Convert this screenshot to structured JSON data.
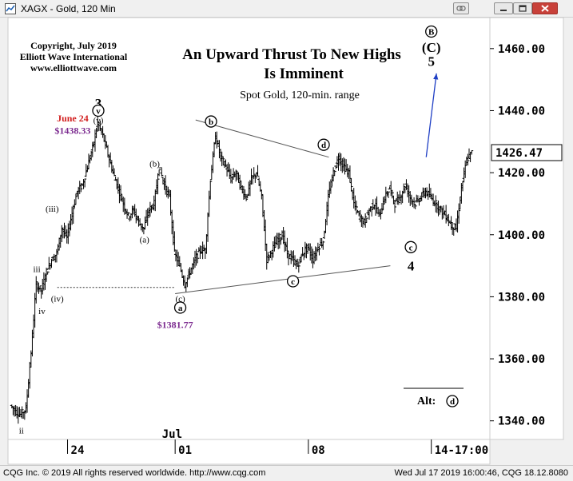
{
  "window": {
    "title": "XAGX - Gold, 120 Min"
  },
  "chart_data": {
    "type": "candlestick",
    "title": "An Upward Thrust To New Highs",
    "title_line2": "Is Imminent",
    "subtitle": "Spot Gold, 120-min. range",
    "copyright_lines": [
      "Copyright, July 2019",
      "Elliott Wave International",
      "www.elliottwave.com"
    ],
    "ylim": [
      1334,
      1470
    ],
    "y_ticks": [
      {
        "value": 1460,
        "label": "1460.00"
      },
      {
        "value": 1440,
        "label": "1440.00"
      },
      {
        "value": 1420,
        "label": "1420.00"
      },
      {
        "value": 1400,
        "label": "1400.00"
      },
      {
        "value": 1380,
        "label": "1380.00"
      },
      {
        "value": 1360,
        "label": "1360.00"
      },
      {
        "value": 1340,
        "label": "1340.00"
      }
    ],
    "last_price": {
      "value": 1426.47,
      "label": "1426.47"
    },
    "x_ticks": [
      {
        "bar": 11,
        "label": "24"
      },
      {
        "bar": 32,
        "label": "01"
      },
      {
        "bar": 58,
        "label": "08"
      },
      {
        "bar": 82,
        "label": "14-17:00"
      }
    ],
    "x_month_label": {
      "bar": 31,
      "label": "Jul"
    },
    "price_path": [
      [
        0,
        1345
      ],
      [
        1,
        1343
      ],
      [
        2,
        1342
      ],
      [
        3,
        1344
      ],
      [
        4,
        1362
      ],
      [
        5,
        1384
      ],
      [
        6,
        1382
      ],
      [
        7,
        1388
      ],
      [
        8,
        1392
      ],
      [
        9,
        1394
      ],
      [
        10,
        1402
      ],
      [
        11,
        1399
      ],
      [
        12,
        1407
      ],
      [
        13,
        1414
      ],
      [
        14,
        1416
      ],
      [
        15,
        1422
      ],
      [
        16,
        1428
      ],
      [
        17,
        1436
      ],
      [
        18,
        1432
      ],
      [
        19,
        1426
      ],
      [
        20,
        1420
      ],
      [
        21,
        1415
      ],
      [
        22,
        1410
      ],
      [
        23,
        1406
      ],
      [
        24,
        1408
      ],
      [
        25,
        1404
      ],
      [
        26,
        1402
      ],
      [
        27,
        1408
      ],
      [
        28,
        1410
      ],
      [
        29,
        1422
      ],
      [
        30,
        1416
      ],
      [
        31,
        1412
      ],
      [
        32,
        1394
      ],
      [
        33,
        1390
      ],
      [
        34,
        1384
      ],
      [
        35,
        1388
      ],
      [
        36,
        1392
      ],
      [
        37,
        1395
      ],
      [
        38,
        1395
      ],
      [
        39,
        1418
      ],
      [
        40,
        1432
      ],
      [
        41,
        1425
      ],
      [
        42,
        1422
      ],
      [
        43,
        1418
      ],
      [
        44,
        1420
      ],
      [
        45,
        1415
      ],
      [
        46,
        1412
      ],
      [
        47,
        1418
      ],
      [
        48,
        1420
      ],
      [
        49,
        1412
      ],
      [
        50,
        1392
      ],
      [
        51,
        1395
      ],
      [
        52,
        1398
      ],
      [
        53,
        1400
      ],
      [
        54,
        1394
      ],
      [
        55,
        1392
      ],
      [
        56,
        1390
      ],
      [
        57,
        1394
      ],
      [
        58,
        1396
      ],
      [
        59,
        1392
      ],
      [
        60,
        1396
      ],
      [
        61,
        1398
      ],
      [
        62,
        1412
      ],
      [
        63,
        1420
      ],
      [
        64,
        1425
      ],
      [
        65,
        1422
      ],
      [
        66,
        1420
      ],
      [
        67,
        1410
      ],
      [
        68,
        1406
      ],
      [
        69,
        1404
      ],
      [
        70,
        1408
      ],
      [
        71,
        1410
      ],
      [
        72,
        1406
      ],
      [
        73,
        1412
      ],
      [
        74,
        1415
      ],
      [
        75,
        1410
      ],
      [
        76,
        1412
      ],
      [
        77,
        1416
      ],
      [
        78,
        1412
      ],
      [
        79,
        1410
      ],
      [
        80,
        1412
      ],
      [
        81,
        1414
      ],
      [
        82,
        1412
      ],
      [
        83,
        1410
      ],
      [
        84,
        1408
      ],
      [
        85,
        1406
      ],
      [
        86,
        1403
      ],
      [
        87,
        1402
      ],
      [
        88,
        1415
      ],
      [
        89,
        1424
      ],
      [
        90,
        1426.47
      ]
    ],
    "annotations": [
      {
        "text": "3",
        "bar": 17,
        "price": 1442.5,
        "style": "bold-large"
      },
      {
        "text": "v",
        "bar": 17,
        "price": 1440,
        "style": "circled"
      },
      {
        "text": "(v)",
        "bar": 17,
        "price": 1437,
        "style": "small"
      },
      {
        "text": "June 24",
        "bar": 12,
        "price": 1437.5,
        "style": "red"
      },
      {
        "text": "$1438.33",
        "bar": 12,
        "price": 1433.5,
        "style": "purple"
      },
      {
        "text": "(iii)",
        "bar": 8,
        "price": 1408.5,
        "style": "small"
      },
      {
        "text": "iii",
        "bar": 5,
        "price": 1389,
        "style": "small"
      },
      {
        "text": "(iv)",
        "bar": 9,
        "price": 1379.5,
        "style": "small"
      },
      {
        "text": "iv",
        "bar": 6,
        "price": 1375.5,
        "style": "small"
      },
      {
        "text": "ii",
        "bar": 2,
        "price": 1337,
        "style": "small"
      },
      {
        "text": "(b)",
        "bar": 28,
        "price": 1423,
        "style": "small"
      },
      {
        "text": "(a)",
        "bar": 26,
        "price": 1398.5,
        "style": "small"
      },
      {
        "text": "(c)",
        "bar": 33,
        "price": 1379.5,
        "style": "small"
      },
      {
        "text": "a",
        "bar": 33,
        "price": 1376.5,
        "style": "circled"
      },
      {
        "text": "$1381.77",
        "bar": 32,
        "price": 1371,
        "style": "purple"
      },
      {
        "text": "b",
        "bar": 39,
        "price": 1436.5,
        "style": "circled"
      },
      {
        "text": "c",
        "bar": 55,
        "price": 1385,
        "style": "circled"
      },
      {
        "text": "d",
        "bar": 61,
        "price": 1429,
        "style": "circled"
      },
      {
        "text": "c",
        "bar": 78,
        "price": 1396,
        "style": "circled"
      },
      {
        "text": "4",
        "bar": 78,
        "price": 1390,
        "style": "bold-large"
      },
      {
        "text": "B",
        "bar": 82,
        "price": 1465.5,
        "style": "circled"
      },
      {
        "text": "(C)",
        "bar": 82,
        "price": 1460.5,
        "style": "bold-large"
      },
      {
        "text": "5",
        "bar": 82,
        "price": 1456,
        "style": "bold-large"
      }
    ],
    "trendlines": [
      {
        "from": [
          36,
          1437
        ],
        "to": [
          62,
          1425
        ]
      },
      {
        "from": [
          32,
          1381
        ],
        "to": [
          74,
          1390
        ]
      },
      {
        "from": [
          9,
          1383
        ],
        "to": [
          32,
          1383
        ],
        "style": "dotted"
      }
    ],
    "projection_arrow": {
      "from": [
        81,
        1425
      ],
      "to": [
        83,
        1452
      ]
    },
    "alt_label": {
      "text": "Alt:",
      "circled": "d"
    }
  },
  "footer": {
    "left": "CQG Inc. © 2019 All rights reserved worldwide. http://www.cqg.com",
    "right": "Wed Jul 17 2019 16:00:46, CQG 18.12.8080"
  }
}
